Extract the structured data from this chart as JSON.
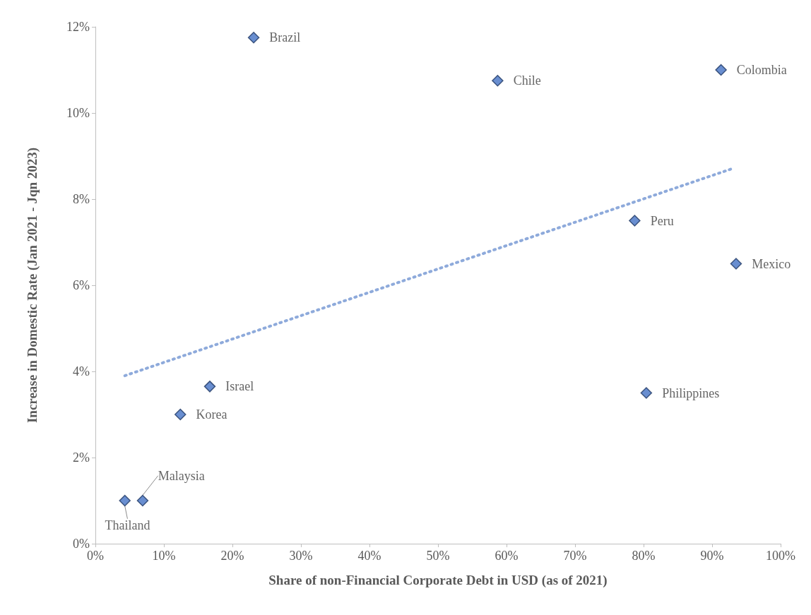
{
  "chart_data": {
    "type": "scatter",
    "xlabel": "Share of non-Financial Corporate Debt in USD (as of 2021)",
    "ylabel": "Increase in Domestic Rate (Jan 2021 - Jqn 2023)",
    "series": [
      {
        "color": "#4472c4",
        "marker": "diamond",
        "x": [
          23.1,
          58.7,
          91.3,
          78.7,
          93.5,
          80.4,
          16.7,
          12.4,
          6.9,
          4.3
        ],
        "values": [
          11.75,
          10.75,
          11.0,
          7.5,
          6.5,
          3.5,
          3.65,
          3.0,
          1.0,
          1.0
        ]
      },
      {
        "type": "line",
        "color": "#8eaadb",
        "line_style": "dotted",
        "marker": "none",
        "x": [
          4.3,
          92.8
        ],
        "values": [
          3.9,
          8.7
        ]
      }
    ],
    "annotations": [
      {
        "text": "Brazil",
        "x": 23.1,
        "y": 11.75
      },
      {
        "text": "Chile",
        "x": 58.7,
        "y": 10.75
      },
      {
        "text": "Colombia",
        "x": 91.3,
        "y": 11.0
      },
      {
        "text": "Peru",
        "x": 78.7,
        "y": 7.5
      },
      {
        "text": "Mexico",
        "x": 93.5,
        "y": 6.5
      },
      {
        "text": "Philippines",
        "x": 80.4,
        "y": 3.5
      },
      {
        "text": "Israel",
        "x": 16.7,
        "y": 3.65
      },
      {
        "text": "Korea",
        "x": 12.4,
        "y": 3.0
      },
      {
        "text": "Malaysia",
        "x": 6.9,
        "y": 1.0
      },
      {
        "text": "Thailand",
        "x": 4.3,
        "y": 1.0
      }
    ],
    "xlim": [
      0,
      100
    ],
    "xticks": [
      {
        "value": 0,
        "label": "0%"
      },
      {
        "value": 10,
        "label": "10%"
      },
      {
        "value": 20,
        "label": "20%"
      },
      {
        "value": 30,
        "label": "30%"
      },
      {
        "value": 40,
        "label": "40%"
      },
      {
        "value": 50,
        "label": "50%"
      },
      {
        "value": 60,
        "label": "60%"
      },
      {
        "value": 70,
        "label": "70%"
      },
      {
        "value": 80,
        "label": "80%"
      },
      {
        "value": 90,
        "label": "90%"
      },
      {
        "value": 100,
        "label": "100%"
      }
    ],
    "ylim": [
      0,
      12
    ],
    "yticks": [
      {
        "value": 0,
        "label": "0%"
      },
      {
        "value": 2,
        "label": "2%"
      },
      {
        "value": 4,
        "label": "4%"
      },
      {
        "value": 6,
        "label": "6%"
      },
      {
        "value": 8,
        "label": "8%"
      },
      {
        "value": 10,
        "label": "10%"
      },
      {
        "value": 12,
        "label": "12%"
      }
    ],
    "grid": false
  }
}
